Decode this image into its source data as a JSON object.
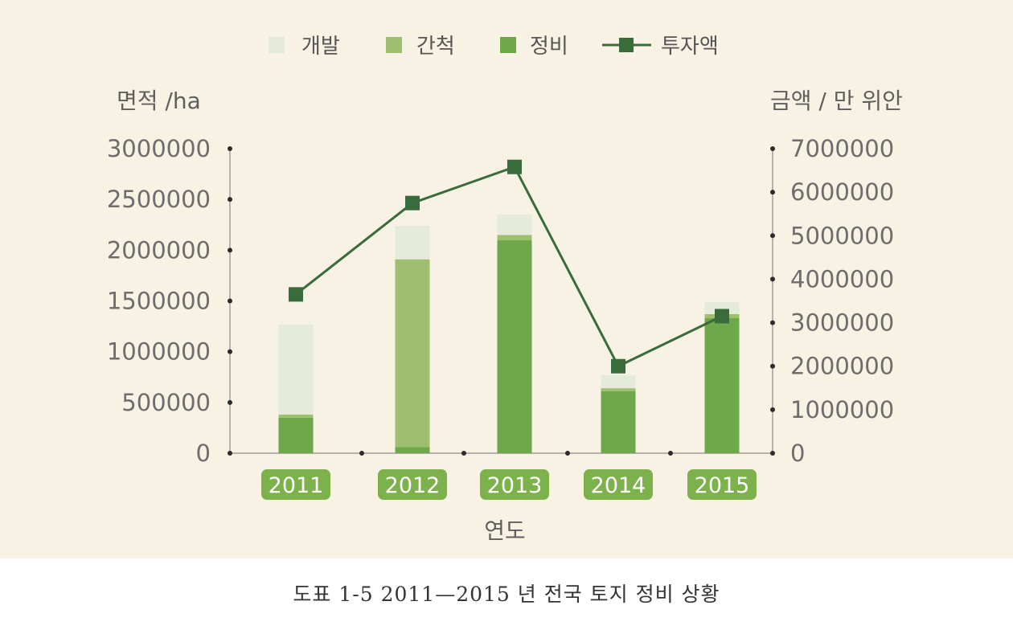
{
  "caption": "도표 1-5  2011—2015 년 전국 토지 정비  상황",
  "colors": {
    "background": "#f8f2e4",
    "develop": "#e4ecd9",
    "reclaim": "#9dbf6f",
    "consolidate": "#6ea84a",
    "investment": "#3a6b3b",
    "year_badge": "#7cb14c"
  },
  "chart_data": {
    "type": "bar",
    "stacked": true,
    "categories": [
      "2011",
      "2012",
      "2013",
      "2014",
      "2015"
    ],
    "series": [
      {
        "name": "개발",
        "type": "bar",
        "axis": "left",
        "values": [
          890000,
          330000,
          200000,
          130000,
          120000
        ]
      },
      {
        "name": "간척",
        "type": "bar",
        "axis": "left",
        "values": [
          30000,
          1850000,
          50000,
          30000,
          40000
        ]
      },
      {
        "name": "정비",
        "type": "bar",
        "axis": "left",
        "values": [
          350000,
          60000,
          2100000,
          610000,
          1330000
        ]
      },
      {
        "name": "투자액",
        "type": "line",
        "axis": "right",
        "marker": "square",
        "values": [
          3650000,
          5750000,
          6580000,
          2000000,
          3150000
        ]
      }
    ],
    "xlabel": "연도",
    "ylabel": "면적 /ha",
    "ylabel_right": "금액 / 만 위안",
    "ylim": [
      0,
      3000000
    ],
    "ylim_right": [
      0,
      7000000
    ],
    "yticks": [
      "3000000",
      "2500000",
      "2000000",
      "1500000",
      "1000000",
      "500000",
      "0"
    ],
    "yticks_right": [
      "7000000",
      "6000000",
      "5000000",
      "4000000",
      "3000000",
      "2000000",
      "1000000",
      "0"
    ],
    "legend_position": "top-center",
    "grid": false
  }
}
